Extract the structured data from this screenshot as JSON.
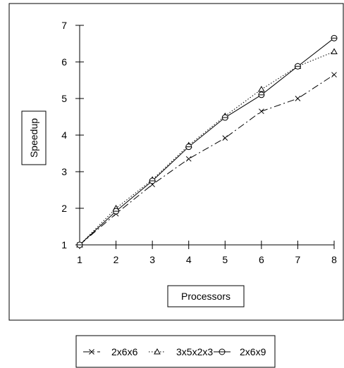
{
  "chart_data": {
    "type": "line",
    "title": "",
    "xlabel": "Processors",
    "ylabel": "Speedup",
    "xlim": [
      1,
      8
    ],
    "ylim": [
      1,
      7
    ],
    "x_ticks": [
      "1",
      "2",
      "3",
      "4",
      "5",
      "6",
      "7",
      "8"
    ],
    "y_ticks": [
      "1",
      "2",
      "3",
      "4",
      "5",
      "6",
      "7"
    ],
    "grid": false,
    "legend_position": "bottom",
    "x": [
      1,
      2,
      3,
      4,
      5,
      6,
      7,
      8
    ],
    "series": [
      {
        "name": "2x6x6",
        "marker": "x",
        "line_style": "dash-dot",
        "values": [
          1.0,
          1.85,
          2.65,
          3.35,
          3.92,
          4.65,
          5.0,
          5.65
        ]
      },
      {
        "name": "3x5x2x3",
        "marker": "triangle",
        "line_style": "dotted",
        "values": [
          1.0,
          2.0,
          2.78,
          3.72,
          4.52,
          5.25,
          5.88,
          6.28
        ]
      },
      {
        "name": "2x6x9",
        "marker": "circle-cross",
        "line_style": "solid",
        "values": [
          1.0,
          1.92,
          2.75,
          3.68,
          4.48,
          5.1,
          5.88,
          6.65
        ]
      }
    ]
  }
}
